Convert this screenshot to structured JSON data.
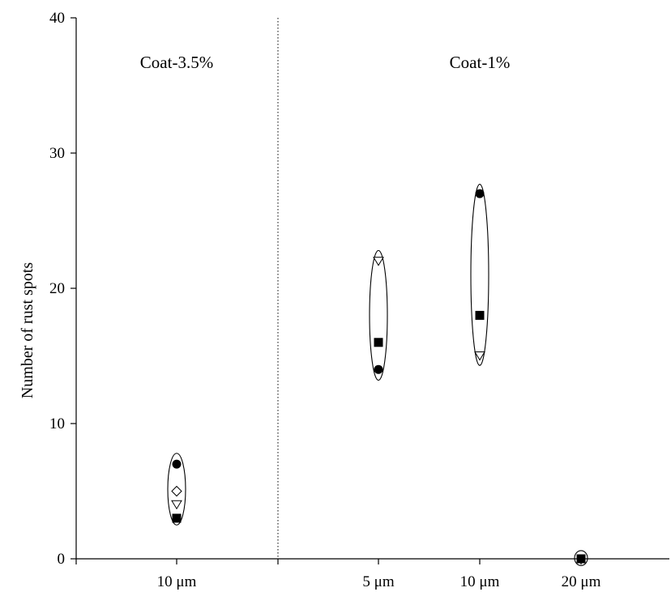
{
  "chart_data": {
    "type": "scatter",
    "title": "",
    "xlabel": "",
    "ylabel": "Number of rust spots",
    "ylim": [
      0,
      40
    ],
    "yticks": [
      0,
      10,
      20,
      30,
      40
    ],
    "grid": false,
    "categories": [
      "10 μm",
      "5 μm",
      "10 μm",
      "20 μm"
    ],
    "groups": [
      {
        "label": "Coat-3.5%",
        "categories": [
          "10 μm"
        ]
      },
      {
        "label": "Coat-1%",
        "categories": [
          "5 μm",
          "10 μm",
          "20 μm"
        ]
      }
    ],
    "marker_styles": [
      {
        "marker": "filled-circle"
      },
      {
        "marker": "filled-square"
      },
      {
        "marker": "open-triangle-down"
      },
      {
        "marker": "open-diamond"
      }
    ],
    "points": [
      {
        "category": "10 μm",
        "group": "Coat-3.5%",
        "marker": "filled-circle",
        "y": 7
      },
      {
        "category": "10 μm",
        "group": "Coat-3.5%",
        "marker": "open-diamond",
        "y": 5
      },
      {
        "category": "10 μm",
        "group": "Coat-3.5%",
        "marker": "open-triangle-down",
        "y": 4
      },
      {
        "category": "10 μm",
        "group": "Coat-3.5%",
        "marker": "filled-square",
        "y": 3
      },
      {
        "category": "5 μm",
        "group": "Coat-1%",
        "marker": "open-triangle-down",
        "y": 22
      },
      {
        "category": "5 μm",
        "group": "Coat-1%",
        "marker": "filled-square",
        "y": 16
      },
      {
        "category": "5 μm",
        "group": "Coat-1%",
        "marker": "filled-circle",
        "y": 14
      },
      {
        "category": "10 μm",
        "group": "Coat-1%",
        "marker": "filled-circle",
        "y": 27
      },
      {
        "category": "10 μm",
        "group": "Coat-1%",
        "marker": "filled-square",
        "y": 18
      },
      {
        "category": "10 μm",
        "group": "Coat-1%",
        "marker": "open-triangle-down",
        "y": 15
      },
      {
        "category": "20 μm",
        "group": "Coat-1%",
        "marker": "filled-square",
        "y": 0
      }
    ],
    "clusters": [
      {
        "category_index": 0,
        "group": "Coat-3.5%",
        "y_range": [
          2.5,
          7.8
        ]
      },
      {
        "category_index": 1,
        "group": "Coat-1%",
        "y_range": [
          13.2,
          22.8
        ]
      },
      {
        "category_index": 2,
        "group": "Coat-1%",
        "y_range": [
          14.3,
          27.7
        ]
      },
      {
        "category_index": 3,
        "group": "Coat-1%",
        "y_range": [
          -0.5,
          0.6
        ]
      }
    ]
  }
}
